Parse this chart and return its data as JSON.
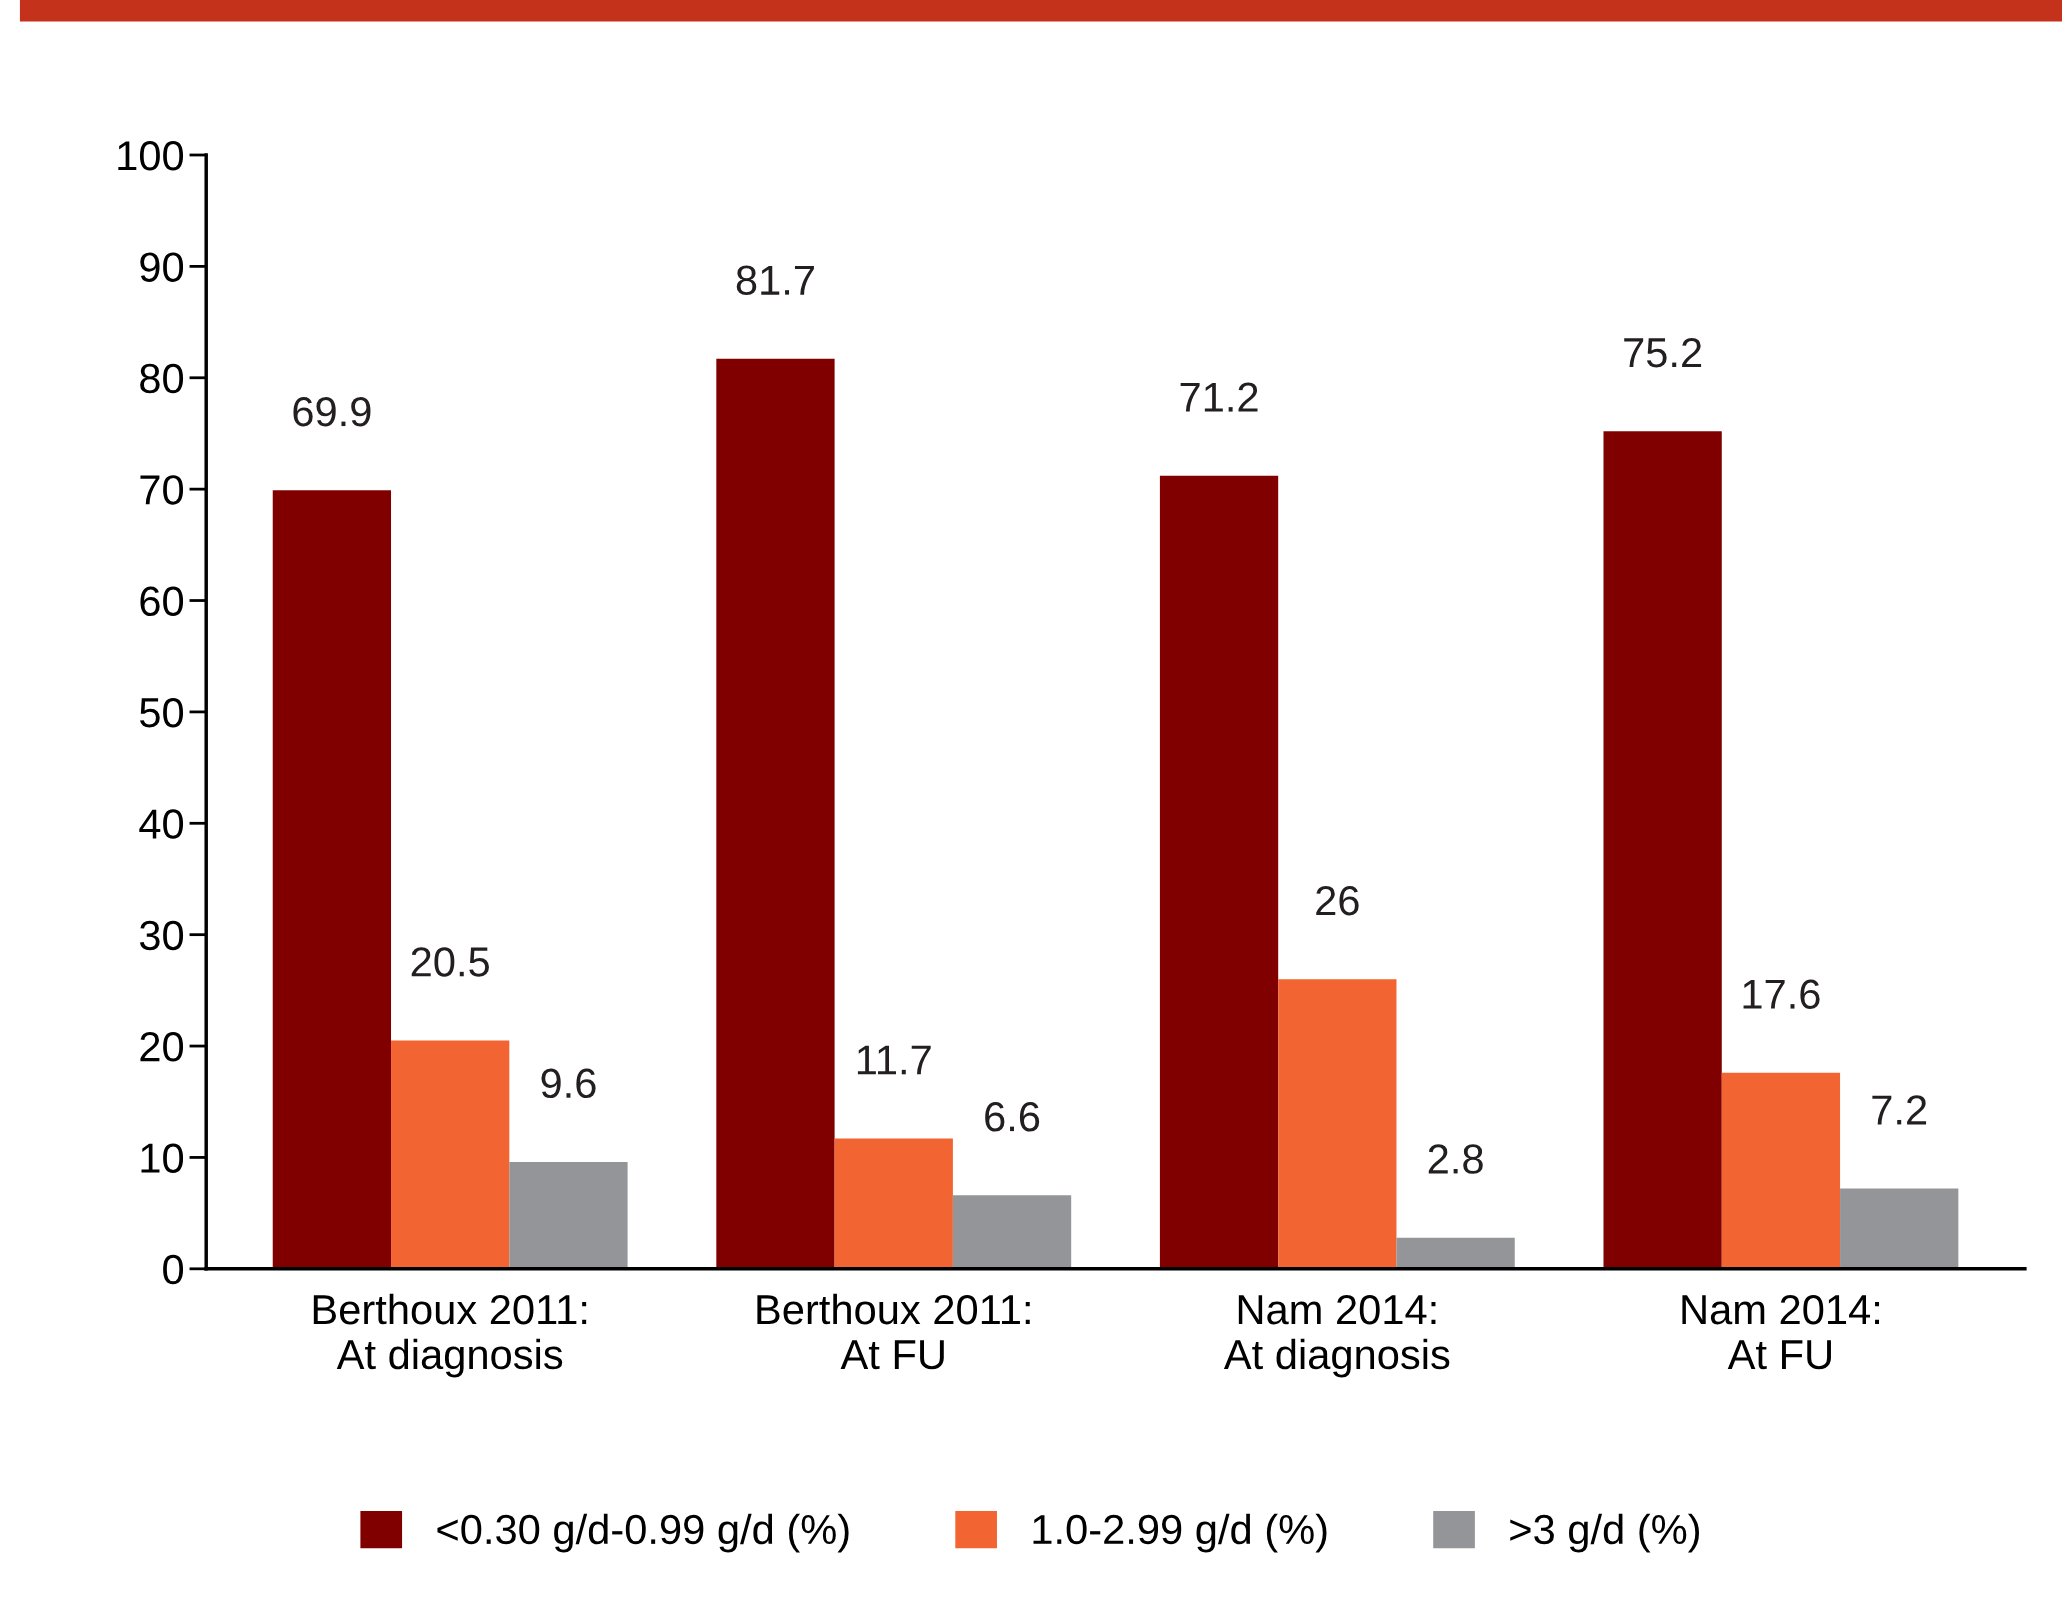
{
  "chart_data": {
    "type": "bar",
    "categories": [
      "Berthoux 2011:\nAt diagnosis",
      "Berthoux 2011:\nAt FU",
      "Nam 2014:\nAt diagnosis",
      "Nam 2014:\nAt FU"
    ],
    "series": [
      {
        "name": "<0.30 g/d-0.99 g/d (%)",
        "color": "#800000",
        "values": [
          69.9,
          81.7,
          71.2,
          75.2
        ]
      },
      {
        "name": "1.0-2.99 g/d (%)",
        "color": "#f26532",
        "values": [
          20.5,
          11.7,
          26,
          17.6
        ]
      },
      {
        "name": ">3 g/d (%)",
        "color": "#939598",
        "values": [
          9.6,
          6.6,
          2.8,
          7.2
        ]
      }
    ],
    "ylim": [
      0,
      100
    ],
    "yticks": [
      0,
      10,
      20,
      30,
      40,
      50,
      60,
      70,
      80,
      90,
      100
    ],
    "grid": false,
    "legend": "bottom",
    "data_labels": true
  }
}
